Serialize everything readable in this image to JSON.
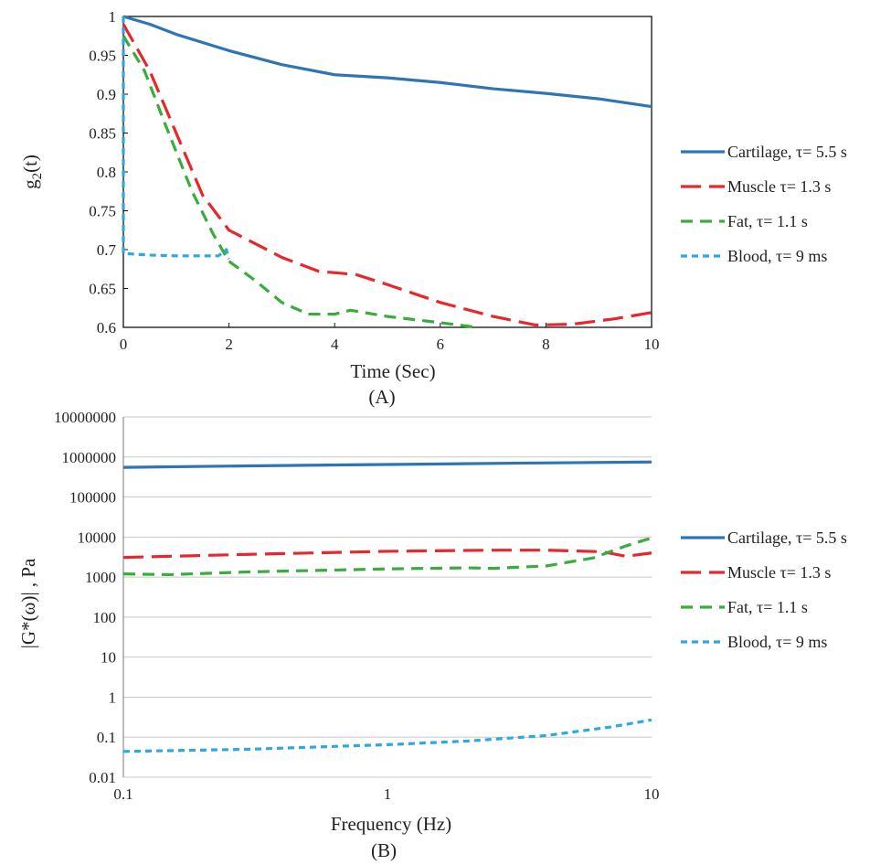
{
  "chart_data": [
    {
      "type": "line",
      "panel_label": "(A)",
      "xlabel": "Time (Sec)",
      "ylabel_main": "g",
      "ylabel_sub": "2",
      "ylabel_tail": "(t)",
      "xlim": [
        0,
        10
      ],
      "ylim": [
        0.6,
        1.0
      ],
      "x_ticks": [
        0,
        2,
        4,
        6,
        8,
        10
      ],
      "x_tick_labels": [
        "0",
        "2",
        "4",
        "6",
        "8",
        "10"
      ],
      "y_ticks": [
        0.6,
        0.65,
        0.7,
        0.75,
        0.8,
        0.85,
        0.9,
        0.95,
        1.0
      ],
      "y_tick_labels": [
        "0.6",
        "0.65",
        "0.7",
        "0.75",
        "0.8",
        "0.85",
        "0.9",
        "0.95",
        "1"
      ],
      "grid": false,
      "legend_position": "right",
      "series": [
        {
          "name": "Cartilage, τ= 5.5 s",
          "color": "#2e75b6",
          "style": "solid",
          "points": [
            [
              0,
              1.0
            ],
            [
              0.5,
              0.99
            ],
            [
              1,
              0.977
            ],
            [
              2,
              0.956
            ],
            [
              3,
              0.938
            ],
            [
              4,
              0.925
            ],
            [
              5,
              0.921
            ],
            [
              6,
              0.915
            ],
            [
              7,
              0.907
            ],
            [
              8,
              0.901
            ],
            [
              9,
              0.894
            ],
            [
              10,
              0.884
            ]
          ]
        },
        {
          "name": "Muscle τ= 1.3 s",
          "color": "#e8262b",
          "style": "longdash",
          "points": [
            [
              0,
              0.99
            ],
            [
              0.5,
              0.93
            ],
            [
              1,
              0.85
            ],
            [
              1.5,
              0.77
            ],
            [
              2,
              0.725
            ],
            [
              3,
              0.69
            ],
            [
              3.7,
              0.672
            ],
            [
              4.4,
              0.668
            ],
            [
              5,
              0.655
            ],
            [
              6,
              0.632
            ],
            [
              7,
              0.614
            ],
            [
              7.8,
              0.603
            ],
            [
              8.5,
              0.604
            ],
            [
              9.3,
              0.611
            ],
            [
              10,
              0.619
            ]
          ]
        },
        {
          "name": "Fat, τ= 1.1 s",
          "color": "#3aab3d",
          "style": "dash",
          "points": [
            [
              0,
              0.975
            ],
            [
              0.4,
              0.93
            ],
            [
              0.8,
              0.86
            ],
            [
              1.3,
              0.775
            ],
            [
              1.7,
              0.72
            ],
            [
              2,
              0.685
            ],
            [
              2.5,
              0.66
            ],
            [
              3,
              0.632
            ],
            [
              3.5,
              0.617
            ],
            [
              4,
              0.617
            ],
            [
              4.3,
              0.622
            ],
            [
              5,
              0.614
            ],
            [
              6,
              0.606
            ],
            [
              6.7,
              0.6
            ]
          ]
        },
        {
          "name": "Blood,  τ= 9 ms",
          "color": "#2fa8e0",
          "style": "shortdash",
          "points": [
            [
              0,
              1.0
            ],
            [
              0,
              0.695
            ],
            [
              0.5,
              0.693
            ],
            [
              1.0,
              0.692
            ],
            [
              1.5,
              0.692
            ],
            [
              1.8,
              0.692
            ],
            [
              1.95,
              0.7
            ],
            [
              2.0,
              0.688
            ]
          ]
        }
      ]
    },
    {
      "type": "line",
      "panel_label": "(B)",
      "xlabel": "Frequency (Hz)",
      "ylabel": "|G*(ω)| , Pa",
      "xscale": "log",
      "yscale": "log",
      "xlim": [
        0.1,
        10
      ],
      "ylim": [
        0.01,
        10000000
      ],
      "x_ticks": [
        0.1,
        1,
        10
      ],
      "x_tick_labels": [
        "0.1",
        "1",
        "10"
      ],
      "y_ticks": [
        0.01,
        0.1,
        1,
        10,
        100,
        1000,
        10000,
        100000,
        1000000,
        10000000
      ],
      "y_tick_labels": [
        "0.01",
        "0.1",
        "1",
        "10",
        "100",
        "1000",
        "10000",
        "100000",
        "1000000",
        "10000000"
      ],
      "grid": true,
      "legend_position": "right",
      "series": [
        {
          "name": "Cartilage, τ= 5.5 s",
          "color": "#2e75b6",
          "style": "solid",
          "points": [
            [
              0.1,
              550000
            ],
            [
              0.3,
              600000
            ],
            [
              1,
              650000
            ],
            [
              3,
              700000
            ],
            [
              10,
              750000
            ]
          ]
        },
        {
          "name": "Muscle τ= 1.3 s",
          "color": "#e8262b",
          "style": "longdash",
          "points": [
            [
              0.1,
              3100
            ],
            [
              0.3,
              3700
            ],
            [
              1,
              4400
            ],
            [
              2.5,
              4700
            ],
            [
              4,
              4700
            ],
            [
              6.5,
              4300
            ],
            [
              8,
              3300
            ],
            [
              10,
              4000
            ]
          ]
        },
        {
          "name": "Fat, τ= 1.1 s",
          "color": "#3aab3d",
          "style": "dash",
          "points": [
            [
              0.1,
              1200
            ],
            [
              0.15,
              1150
            ],
            [
              0.3,
              1350
            ],
            [
              1,
              1600
            ],
            [
              2,
              1700
            ],
            [
              2.5,
              1650
            ],
            [
              4,
              1900
            ],
            [
              6,
              3000
            ],
            [
              8,
              6000
            ],
            [
              10,
              9500
            ]
          ]
        },
        {
          "name": "Blood,  τ= 9 ms",
          "color": "#2fa8e0",
          "style": "shortdash",
          "points": [
            [
              0.1,
              0.044
            ],
            [
              0.3,
              0.05
            ],
            [
              1,
              0.065
            ],
            [
              2,
              0.08
            ],
            [
              4,
              0.11
            ],
            [
              7,
              0.18
            ],
            [
              10,
              0.27
            ]
          ]
        }
      ]
    }
  ]
}
